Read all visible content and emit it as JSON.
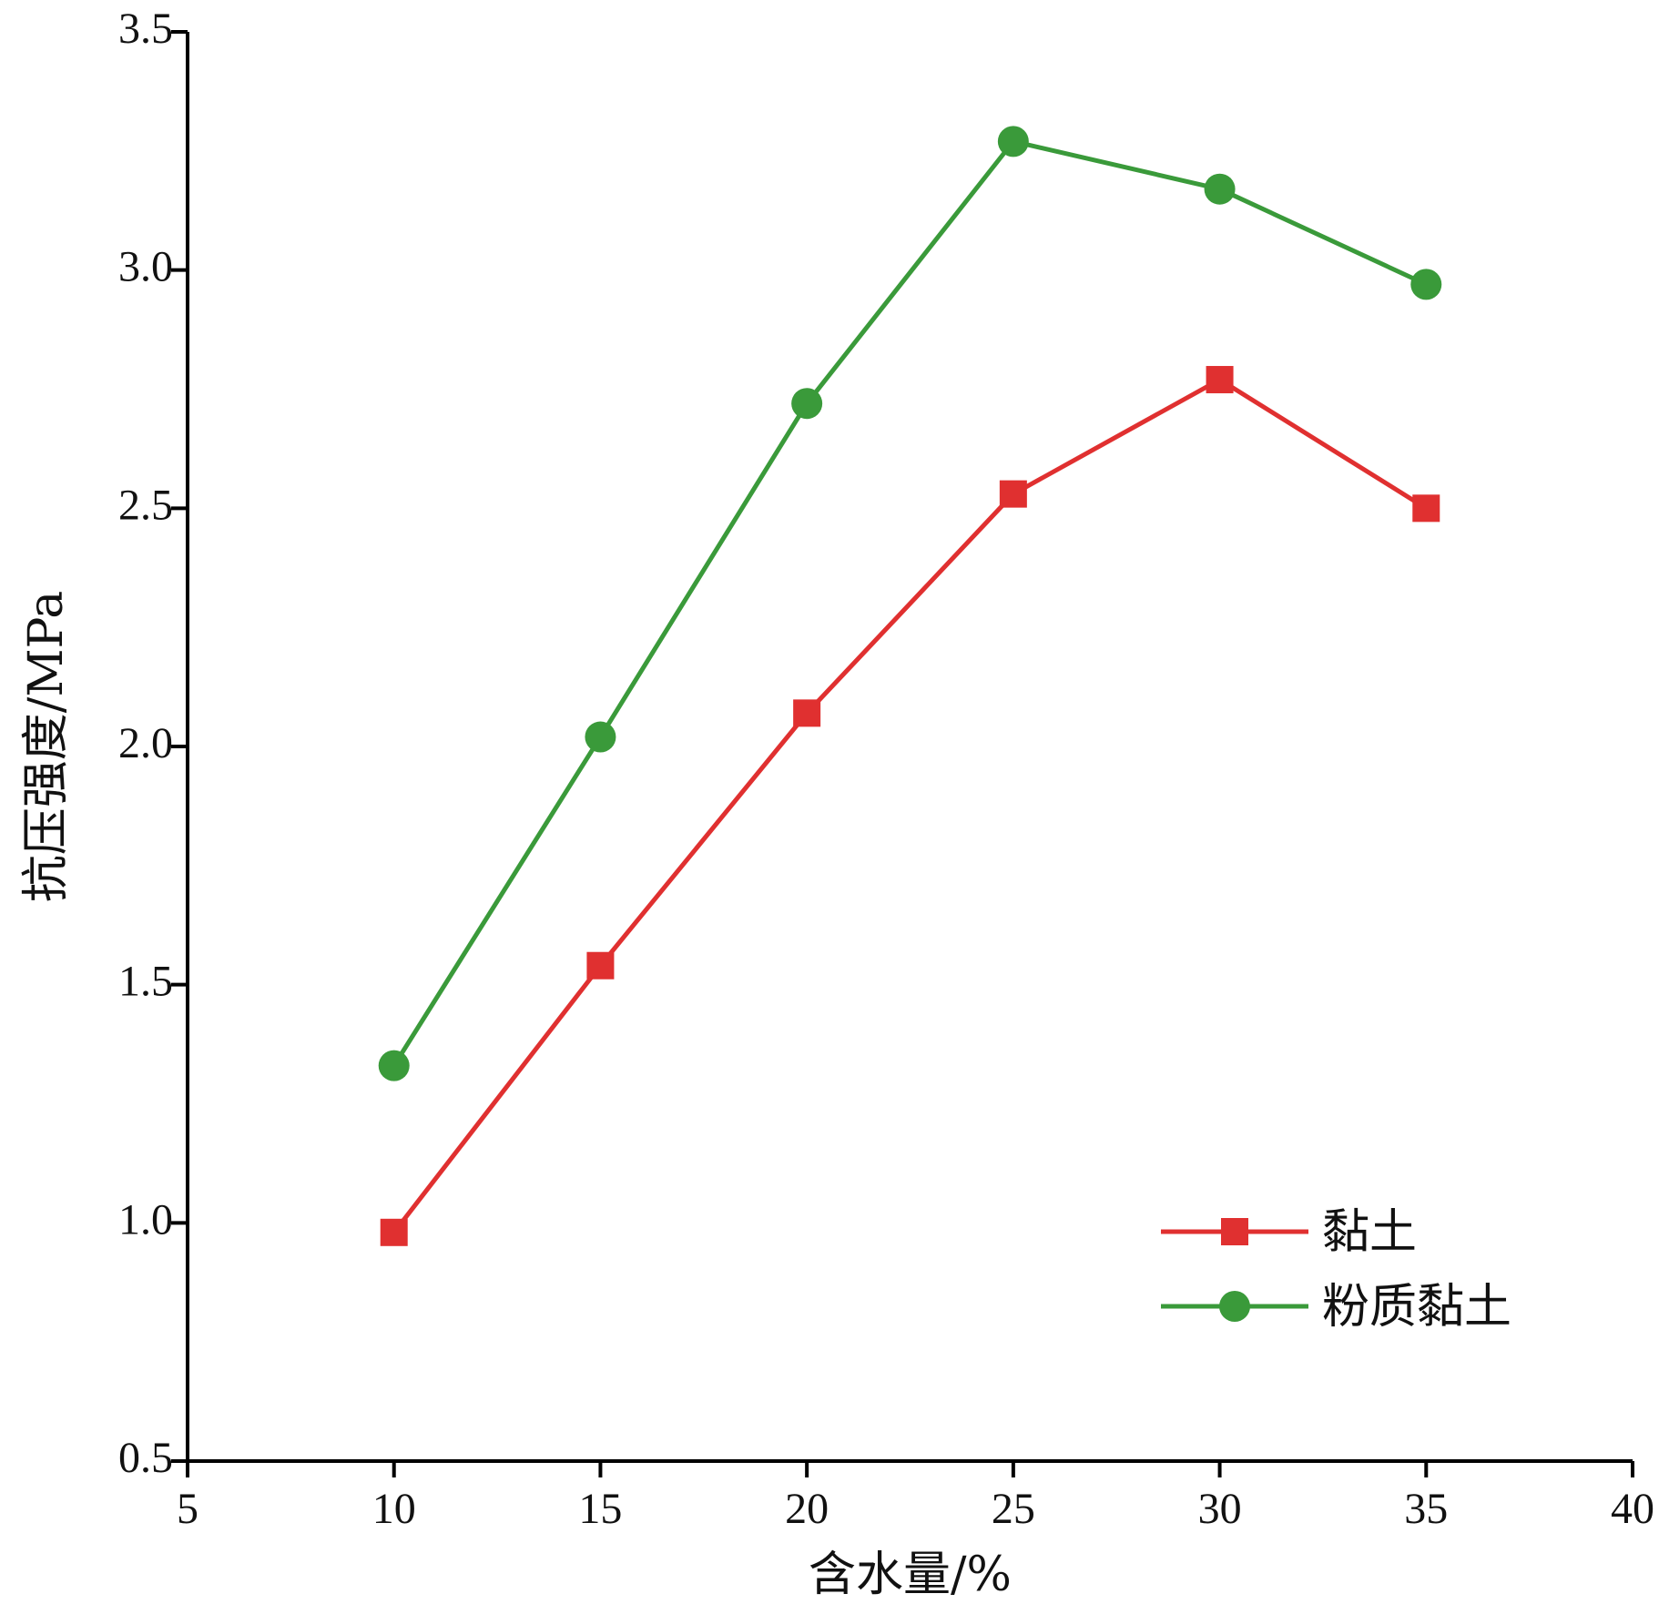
{
  "chart_data": {
    "type": "line",
    "title": "",
    "xlabel": "含水量/%",
    "ylabel": "抗压强度/MPa",
    "xlim": [
      5,
      40
    ],
    "ylim": [
      0.5,
      3.5
    ],
    "x_ticks": [
      5,
      10,
      15,
      20,
      25,
      30,
      35,
      40
    ],
    "x_tick_labels": [
      "5",
      "10",
      "15",
      "20",
      "25",
      "30",
      "35",
      "40"
    ],
    "y_ticks": [
      0.5,
      1.0,
      1.5,
      2.0,
      2.5,
      3.0,
      3.5
    ],
    "y_tick_labels": [
      "0.5",
      "1.0",
      "1.5",
      "2.0",
      "2.5",
      "3.0",
      "3.5"
    ],
    "grid": false,
    "legend_position": "bottom-right",
    "x": [
      10,
      15,
      20,
      25,
      30,
      35
    ],
    "series": [
      {
        "name": "黏土",
        "color": "#e03030",
        "marker": "square",
        "values": [
          0.98,
          1.54,
          2.07,
          2.53,
          2.77,
          2.5
        ]
      },
      {
        "name": "粉质黏土",
        "color": "#3a9a3a",
        "marker": "circle",
        "values": [
          1.33,
          2.02,
          2.72,
          3.27,
          3.17,
          2.97
        ]
      }
    ]
  }
}
